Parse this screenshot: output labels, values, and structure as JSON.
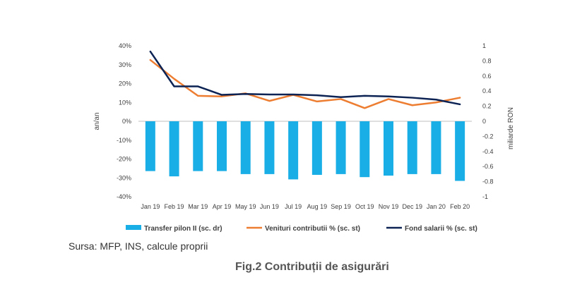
{
  "chart_data": {
    "type": "bar+line",
    "categories": [
      "Jan 19",
      "Feb 19",
      "Mar 19",
      "Apr 19",
      "May 19",
      "Jun 19",
      "Jul 19",
      "Aug 19",
      "Sep 19",
      "Oct 19",
      "Nov 19",
      "Dec 19",
      "Jan 20",
      "Feb 20"
    ],
    "left_axis": {
      "label": "an/an",
      "ticks": [
        "40%",
        "30%",
        "20%",
        "10%",
        "0%",
        "-10%",
        "-20%",
        "-30%",
        "-40%"
      ],
      "ylim": [
        -40,
        40
      ]
    },
    "right_axis": {
      "label": "miliarde RON",
      "ticks": [
        "1",
        "0.8",
        "0.6",
        "0.4",
        "0.2",
        "0",
        "-0.2",
        "-0.4",
        "-0.6",
        "-0.8",
        "-1"
      ],
      "ylim": [
        -1,
        1
      ]
    },
    "series": [
      {
        "name": "Transfer pilon II (sc. dr)",
        "type": "bar",
        "axis": "right",
        "color": "#1aaee6",
        "values": [
          -0.66,
          -0.73,
          -0.66,
          -0.66,
          -0.7,
          -0.7,
          -0.77,
          -0.71,
          -0.7,
          -0.74,
          -0.72,
          -0.7,
          -0.7,
          -0.79
        ]
      },
      {
        "name": "Venituri contributii % (sc. st)",
        "type": "line",
        "axis": "left",
        "color": "#ed7d31",
        "values": [
          32.5,
          22.5,
          13.5,
          13.2,
          14.8,
          10.8,
          14.0,
          10.5,
          11.8,
          7.0,
          11.8,
          8.5,
          10.0,
          12.5
        ]
      },
      {
        "name": "Fond salarii % (sc. st)",
        "type": "line",
        "axis": "left",
        "color": "#0c2354",
        "values": [
          37.0,
          18.5,
          18.5,
          14.0,
          14.5,
          14.2,
          14.2,
          13.8,
          12.8,
          13.5,
          13.2,
          12.5,
          11.5,
          9.0
        ]
      }
    ]
  },
  "source_text": "Sursa: MFP, INS, calcule proprii",
  "caption": "Fig.2 Contribuții de asigurări"
}
